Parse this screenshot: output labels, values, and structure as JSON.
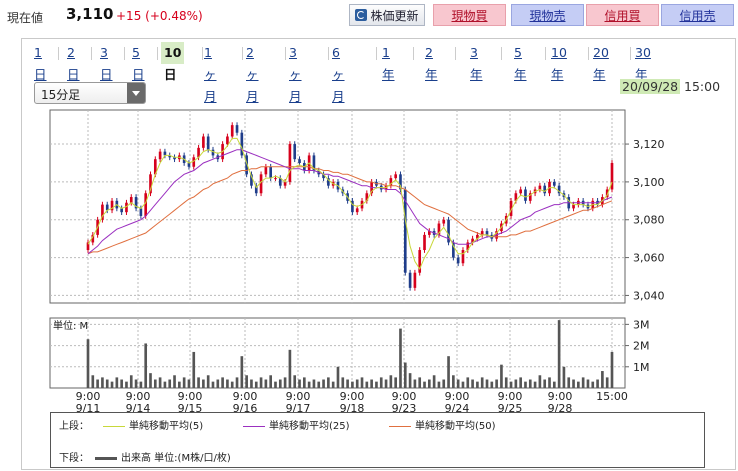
{
  "header": {
    "price_label": "現在値",
    "price_value": "3,110",
    "price_change": "+15 (+0.48%)",
    "refresh_label": "株価更新",
    "buttons": [
      "現物買",
      "現物売",
      "信用買",
      "信用売"
    ]
  },
  "tabs": {
    "items": [
      "1日",
      "2日",
      "3日",
      "5日",
      "10日",
      "1ヶ月",
      "2ヶ月",
      "3ヶ月",
      "6ヶ月",
      "1年",
      "2年",
      "3年",
      "5年",
      "10年",
      "20年",
      "30年"
    ],
    "active": "10日"
  },
  "period_select": {
    "value": "15分足"
  },
  "datetime": {
    "date": "20/09/28",
    "time": "15:00"
  },
  "legend": {
    "upper_label": "上段：",
    "lower_label": "下段：",
    "sma5": "単純移動平均(5)",
    "sma25": "単純移動平均(25)",
    "sma50": "単純移動平均(50)",
    "volume": "出来高 単位:(M株/口/枚)"
  },
  "colors": {
    "up": "#d6001c",
    "down": "#1f3d8a",
    "sma5": "#c8d83a",
    "sma25": "#9b30c0",
    "sma50": "#e07040"
  },
  "chart_data": {
    "type": "candlestick",
    "price_axis": {
      "ticks": [
        3040,
        3060,
        3080,
        3100,
        3120
      ],
      "tick_labels": [
        "3,040",
        "3,060",
        "3,080",
        "3,100",
        "3,120"
      ],
      "ylim": [
        3036,
        3138
      ]
    },
    "volume_axis": {
      "unit_label": "単位: M",
      "ticks": [
        1,
        2,
        3
      ],
      "tick_labels": [
        "1M",
        "2M",
        "3M"
      ],
      "ylim": [
        0,
        3.3
      ]
    },
    "x_ticks": [
      {
        "time": "9:00",
        "date": "9/11"
      },
      {
        "time": "9:00",
        "date": "9/14"
      },
      {
        "time": "9:00",
        "date": "9/15"
      },
      {
        "time": "9:00",
        "date": "9/16"
      },
      {
        "time": "9:00",
        "date": "9/17"
      },
      {
        "time": "9:00",
        "date": "9/18"
      },
      {
        "time": "9:00",
        "date": "9/23"
      },
      {
        "time": "9:00",
        "date": "9/24"
      },
      {
        "time": "9:00",
        "date": "9/25"
      },
      {
        "time": "9:00",
        "date": "9/28"
      },
      {
        "time": "15:00",
        "date": ""
      }
    ],
    "close_path": [
      3068,
      3072,
      3080,
      3088,
      3085,
      3090,
      3086,
      3084,
      3089,
      3092,
      3086,
      3082,
      3094,
      3104,
      3112,
      3116,
      3114,
      3113,
      3112,
      3114,
      3110,
      3108,
      3113,
      3118,
      3124,
      3117,
      3114,
      3112,
      3120,
      3124,
      3130,
      3126,
      3114,
      3104,
      3098,
      3094,
      3104,
      3108,
      3102,
      3102,
      3098,
      3100,
      3120,
      3112,
      3110,
      3106,
      3114,
      3106,
      3104,
      3102,
      3098,
      3100,
      3096,
      3094,
      3090,
      3084,
      3086,
      3090,
      3094,
      3100,
      3098,
      3096,
      3098,
      3102,
      3104,
      3096,
      3052,
      3044,
      3052,
      3064,
      3072,
      3074,
      3072,
      3078,
      3080,
      3068,
      3060,
      3057,
      3064,
      3068,
      3070,
      3072,
      3074,
      3072,
      3070,
      3074,
      3078,
      3082,
      3090,
      3094,
      3096,
      3090,
      3094,
      3096,
      3098,
      3094,
      3100,
      3098,
      3094,
      3092,
      3086,
      3088,
      3090,
      3088,
      3086,
      3090,
      3088,
      3092,
      3096,
      3110
    ],
    "sma5": [
      3067,
      3071,
      3076,
      3082,
      3085,
      3086,
      3088,
      3086,
      3087,
      3089,
      3087,
      3086,
      3089,
      3096,
      3104,
      3110,
      3114,
      3114,
      3113,
      3113,
      3112,
      3110,
      3111,
      3113,
      3116,
      3117,
      3116,
      3115,
      3116,
      3119,
      3123,
      3123,
      3118,
      3110,
      3103,
      3097,
      3100,
      3102,
      3102,
      3103,
      3102,
      3100,
      3106,
      3108,
      3109,
      3108,
      3110,
      3107,
      3106,
      3104,
      3101,
      3099,
      3098,
      3095,
      3092,
      3088,
      3087,
      3088,
      3090,
      3095,
      3097,
      3097,
      3097,
      3099,
      3101,
      3098,
      3080,
      3066,
      3058,
      3054,
      3060,
      3064,
      3070,
      3073,
      3076,
      3072,
      3066,
      3062,
      3062,
      3064,
      3068,
      3070,
      3072,
      3072,
      3071,
      3073,
      3076,
      3080,
      3085,
      3090,
      3093,
      3092,
      3093,
      3095,
      3096,
      3095,
      3097,
      3097,
      3095,
      3093,
      3090,
      3088,
      3088,
      3088,
      3087,
      3088,
      3088,
      3090,
      3093,
      3100
    ],
    "sma25": [
      3062,
      3064,
      3066,
      3069,
      3071,
      3073,
      3075,
      3076,
      3077,
      3078,
      3079,
      3080,
      3082,
      3085,
      3088,
      3091,
      3094,
      3097,
      3100,
      3102,
      3104,
      3105,
      3106,
      3108,
      3110,
      3111,
      3112,
      3113,
      3114,
      3115,
      3116,
      3117,
      3117,
      3116,
      3115,
      3114,
      3113,
      3112,
      3111,
      3110,
      3109,
      3108,
      3107,
      3107,
      3107,
      3106,
      3106,
      3106,
      3105,
      3104,
      3104,
      3103,
      3103,
      3102,
      3101,
      3100,
      3099,
      3098,
      3098,
      3097,
      3097,
      3097,
      3096,
      3096,
      3096,
      3094,
      3090,
      3086,
      3082,
      3078,
      3076,
      3074,
      3073,
      3072,
      3071,
      3070,
      3068,
      3067,
      3067,
      3067,
      3068,
      3069,
      3070,
      3071,
      3071,
      3072,
      3073,
      3074,
      3076,
      3078,
      3080,
      3081,
      3082,
      3084,
      3085,
      3086,
      3087,
      3088,
      3088,
      3089,
      3089,
      3089,
      3089,
      3089,
      3089,
      3089,
      3089,
      3090,
      3091,
      3092
    ],
    "sma50": [
      3062,
      3063,
      3063,
      3064,
      3065,
      3066,
      3067,
      3068,
      3069,
      3070,
      3071,
      3072,
      3073,
      3075,
      3077,
      3079,
      3081,
      3083,
      3085,
      3087,
      3089,
      3091,
      3092,
      3094,
      3096,
      3097,
      3099,
      3100,
      3101,
      3102,
      3104,
      3105,
      3106,
      3106,
      3107,
      3107,
      3108,
      3108,
      3108,
      3108,
      3108,
      3108,
      3108,
      3108,
      3108,
      3108,
      3108,
      3107,
      3107,
      3106,
      3106,
      3105,
      3105,
      3104,
      3104,
      3103,
      3102,
      3101,
      3100,
      3100,
      3099,
      3099,
      3098,
      3098,
      3098,
      3097,
      3096,
      3094,
      3092,
      3090,
      3088,
      3087,
      3086,
      3085,
      3084,
      3083,
      3081,
      3079,
      3077,
      3075,
      3074,
      3073,
      3072,
      3072,
      3071,
      3071,
      3071,
      3071,
      3072,
      3072,
      3073,
      3074,
      3074,
      3075,
      3076,
      3077,
      3078,
      3079,
      3080,
      3081,
      3082,
      3083,
      3084,
      3085,
      3085,
      3086,
      3087,
      3088,
      3089,
      3090
    ],
    "volume_path": [
      2.3,
      0.6,
      0.4,
      0.5,
      0.4,
      0.3,
      0.5,
      0.4,
      0.3,
      0.6,
      0.4,
      0.3,
      2.1,
      0.7,
      0.4,
      0.5,
      0.3,
      0.4,
      0.6,
      0.3,
      0.5,
      0.4,
      1.7,
      0.5,
      0.4,
      0.6,
      0.3,
      0.4,
      0.5,
      0.4,
      0.3,
      0.5,
      1.5,
      0.6,
      0.4,
      0.3,
      0.5,
      0.4,
      0.6,
      0.3,
      0.4,
      0.5,
      1.8,
      0.6,
      0.4,
      0.5,
      0.3,
      0.4,
      0.3,
      0.4,
      0.5,
      0.3,
      1.0,
      0.5,
      0.4,
      0.3,
      0.4,
      0.5,
      0.3,
      0.4,
      0.3,
      0.5,
      0.4,
      0.6,
      0.5,
      2.8,
      1.2,
      0.7,
      0.4,
      0.5,
      0.3,
      0.4,
      0.6,
      0.3,
      0.4,
      1.5,
      0.6,
      0.4,
      0.3,
      0.5,
      0.4,
      0.3,
      0.5,
      0.4,
      0.3,
      0.4,
      1.1,
      0.5,
      0.3,
      0.4,
      0.5,
      0.3,
      0.4,
      0.3,
      0.6,
      0.4,
      0.5,
      0.3,
      3.2,
      1.0,
      0.5,
      0.4,
      0.3,
      0.5,
      0.4,
      0.3,
      0.4,
      0.8,
      0.5,
      1.7
    ]
  }
}
